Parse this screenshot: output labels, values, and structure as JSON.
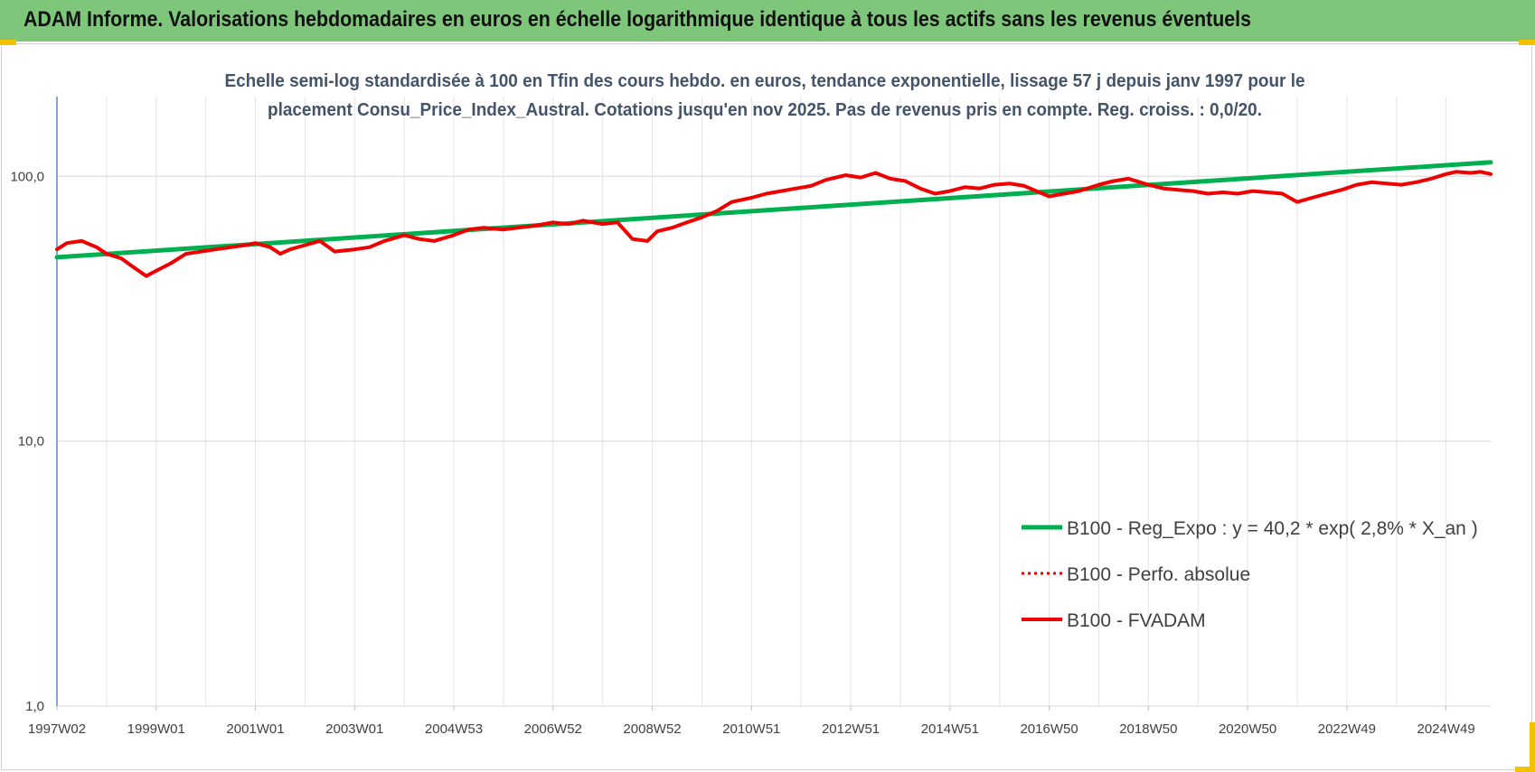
{
  "header": {
    "title": "ADAM Informe. Valorisations hebdomadaires en euros en échelle logarithmique identique à tous les actifs sans les revenus éventuels"
  },
  "colors": {
    "header_bg": "#7dc67a",
    "trend": "#00b050",
    "series": "#ee0000",
    "corner_accent": "#f2c200",
    "y_axis_line": "#4472c4"
  },
  "chart_data": {
    "type": "line",
    "title_lines": [
      "Echelle semi-log standardisée à 100 en Tfin des cours hebdo. en euros, tendance exponentielle, lissage 57 j depuis janv 1997 pour le",
      "placement Consu_Price_Index_Austral. Cotations jusqu'en nov 2025. Pas de revenus pris en compte. Reg. croiss. : 0,0/20."
    ],
    "y_scale": "log",
    "ylim": [
      1,
      200
    ],
    "y_ticks": [
      {
        "value": 1,
        "label": "1,0"
      },
      {
        "value": 10,
        "label": "10,0"
      },
      {
        "value": 100,
        "label": "100,0"
      }
    ],
    "xlim": [
      1997.0,
      2025.9
    ],
    "x_ticks": [
      {
        "value": 1997.0,
        "label": "1997W02"
      },
      {
        "value": 1999.0,
        "label": "1999W01"
      },
      {
        "value": 2001.0,
        "label": "2001W01"
      },
      {
        "value": 2003.0,
        "label": "2003W01"
      },
      {
        "value": 2005.0,
        "label": "2004W53"
      },
      {
        "value": 2007.0,
        "label": "2006W52"
      },
      {
        "value": 2009.0,
        "label": "2008W52"
      },
      {
        "value": 2011.0,
        "label": "2010W51"
      },
      {
        "value": 2013.0,
        "label": "2012W51"
      },
      {
        "value": 2015.0,
        "label": "2014W51"
      },
      {
        "value": 2017.0,
        "label": "2016W50"
      },
      {
        "value": 2019.0,
        "label": "2018W50"
      },
      {
        "value": 2021.0,
        "label": "2020W50"
      },
      {
        "value": 2023.0,
        "label": "2022W49"
      },
      {
        "value": 2025.0,
        "label": "2024W49"
      }
    ],
    "grid": true,
    "legend_position": "bottom-right",
    "series": [
      {
        "name": "B100 - Reg_Expo : y = 40,2 * exp( 2,8% *  X_an )",
        "style": "solid-green",
        "x": [
          1997.0,
          2025.9
        ],
        "values": [
          49.5,
          113.0
        ]
      },
      {
        "name": "B100 - Perfo. absolue",
        "style": "dotted-red",
        "x": [],
        "values": []
      },
      {
        "name": "B100 - FVADAM",
        "style": "solid-red",
        "x": [
          1997.0,
          1997.2,
          1997.5,
          1997.8,
          1998.0,
          1998.3,
          1998.5,
          1998.8,
          1999.0,
          1999.3,
          1999.6,
          1999.9,
          2000.2,
          2000.5,
          2000.8,
          2001.0,
          2001.3,
          2001.5,
          2001.7,
          2002.0,
          2002.3,
          2002.6,
          2003.0,
          2003.3,
          2003.6,
          2004.0,
          2004.3,
          2004.6,
          2005.0,
          2005.3,
          2005.6,
          2006.0,
          2006.3,
          2006.6,
          2007.0,
          2007.3,
          2007.6,
          2008.0,
          2008.3,
          2008.6,
          2008.9,
          2009.1,
          2009.4,
          2009.7,
          2010.0,
          2010.3,
          2010.6,
          2011.0,
          2011.3,
          2011.6,
          2011.9,
          2012.2,
          2012.5,
          2012.9,
          2013.2,
          2013.5,
          2013.8,
          2014.1,
          2014.4,
          2014.7,
          2015.0,
          2015.3,
          2015.6,
          2015.9,
          2016.2,
          2016.5,
          2016.8,
          2017.0,
          2017.3,
          2017.6,
          2018.0,
          2018.3,
          2018.6,
          2019.0,
          2019.3,
          2019.6,
          2019.9,
          2020.2,
          2020.5,
          2020.8,
          2021.1,
          2021.4,
          2021.7,
          2022.0,
          2022.3,
          2022.6,
          2022.9,
          2023.2,
          2023.5,
          2023.8,
          2024.1,
          2024.4,
          2024.7,
          2025.0,
          2025.2,
          2025.5,
          2025.7,
          2025.9
        ],
        "values": [
          53,
          56,
          57,
          54,
          51,
          49,
          46,
          42,
          44,
          47,
          51,
          52,
          53,
          54,
          55,
          56,
          54,
          51,
          53,
          55,
          57,
          52,
          53,
          54,
          57,
          60,
          58,
          57,
          60,
          63,
          64,
          63,
          64,
          65,
          67,
          66,
          68,
          66,
          67,
          58,
          57,
          62,
          64,
          67,
          70,
          74,
          80,
          83,
          86,
          88,
          90,
          92,
          97,
          101,
          99,
          103,
          98,
          96,
          90,
          86,
          88,
          91,
          90,
          93,
          94,
          92,
          87,
          84,
          86,
          88,
          93,
          96,
          98,
          93,
          90,
          89,
          88,
          86,
          87,
          86,
          88,
          87,
          86,
          80,
          83,
          86,
          89,
          93,
          95,
          94,
          93,
          95,
          98,
          102,
          104,
          103,
          104,
          102
        ]
      }
    ]
  }
}
